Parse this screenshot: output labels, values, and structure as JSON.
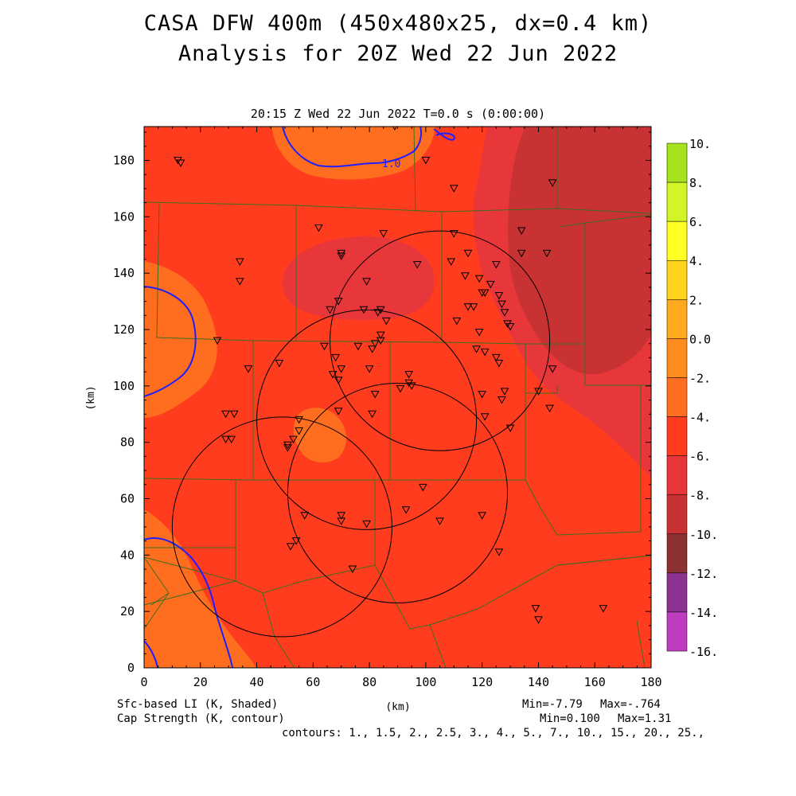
{
  "title_line1": "CASA DFW 400m (450x480x25, dx=0.4 km)",
  "title_line2": "Analysis for 20Z Wed 22 Jun 2022",
  "subtitle": "20:15 Z Wed 22 Jun 2022   T=0.0 s (0:00:00)",
  "axes": {
    "x_label": "(km)",
    "y_label": "(km)",
    "x_ticks": [
      "0",
      "20",
      "40",
      "60",
      "80",
      "100",
      "120",
      "140",
      "160",
      "180"
    ],
    "y_ticks": [
      "0",
      "20",
      "40",
      "60",
      "80",
      "100",
      "120",
      "140",
      "160",
      "180"
    ],
    "x_range": [
      0,
      180
    ],
    "y_range": [
      0,
      192
    ]
  },
  "colorbar": {
    "labels": [
      "10.",
      "8.",
      "6.",
      "4.",
      "2.",
      "0.0",
      "-2.",
      "-4.",
      "-6.",
      "-8.",
      "-10.",
      "-12.",
      "-14.",
      "-16."
    ],
    "colors": [
      "#a6e21e",
      "#d2f529",
      "#ffff24",
      "#ffd21e",
      "#ffaa1e",
      "#ff8c1e",
      "#ff6e1e",
      "#ff3c1e",
      "#e8373a",
      "#c83232",
      "#8c3232",
      "#8c3291",
      "#be3cbe",
      "#dc46e6"
    ]
  },
  "field": {
    "shaded_name": "Sfc-based LI (K, Shaded)",
    "contour_name": "Cap Strength (K, contour)",
    "shaded_min": "Min=-7.79",
    "shaded_max": "Max=-.764",
    "contour_min": "Min=0.100",
    "contour_max": "Max=1.31",
    "contours_text": "contours: 1., 1.5, 2., 2.5, 3., 4., 5., 7., 10., 15., 20., 25.,",
    "contour_label": "1.0"
  },
  "radars": [
    {
      "x_km": 105,
      "y_km": 116,
      "r_km": 39
    },
    {
      "x_km": 79,
      "y_km": 88,
      "r_km": 39
    },
    {
      "x_km": 49,
      "y_km": 50,
      "r_km": 39
    },
    {
      "x_km": 90,
      "y_km": 62,
      "r_km": 39
    }
  ],
  "stations": [
    [
      12,
      180
    ],
    [
      13,
      179
    ],
    [
      89,
      192
    ],
    [
      100,
      180
    ],
    [
      110,
      170
    ],
    [
      145,
      172
    ],
    [
      62,
      156
    ],
    [
      85,
      154
    ],
    [
      110,
      154
    ],
    [
      134,
      155
    ],
    [
      34,
      144
    ],
    [
      70,
      147
    ],
    [
      70,
      146
    ],
    [
      97,
      143
    ],
    [
      115,
      147
    ],
    [
      125,
      143
    ],
    [
      134,
      147
    ],
    [
      143,
      147
    ],
    [
      34,
      137
    ],
    [
      79,
      137
    ],
    [
      109,
      144
    ],
    [
      114,
      139
    ],
    [
      119,
      138
    ],
    [
      123,
      136
    ],
    [
      128,
      126
    ],
    [
      126,
      132
    ],
    [
      127,
      129
    ],
    [
      69,
      130
    ],
    [
      66,
      127
    ],
    [
      78,
      127
    ],
    [
      84,
      127
    ],
    [
      83,
      126
    ],
    [
      86,
      123
    ],
    [
      111,
      123
    ],
    [
      115,
      128
    ],
    [
      117,
      128
    ],
    [
      120,
      133
    ],
    [
      121,
      133
    ],
    [
      119,
      119
    ],
    [
      130,
      121
    ],
    [
      129,
      122
    ],
    [
      84,
      118
    ],
    [
      26,
      116
    ],
    [
      64,
      114
    ],
    [
      76,
      114
    ],
    [
      81,
      113
    ],
    [
      84,
      116
    ],
    [
      82,
      115
    ],
    [
      121,
      112
    ],
    [
      118,
      113
    ],
    [
      125,
      110
    ],
    [
      126,
      108
    ],
    [
      37,
      106
    ],
    [
      48,
      108
    ],
    [
      67,
      104
    ],
    [
      70,
      106
    ],
    [
      68,
      110
    ],
    [
      80,
      106
    ],
    [
      69,
      102
    ],
    [
      94,
      104
    ],
    [
      94,
      101
    ],
    [
      95,
      100
    ],
    [
      91,
      99
    ],
    [
      82,
      97
    ],
    [
      120,
      97
    ],
    [
      128,
      98
    ],
    [
      127,
      95
    ],
    [
      140,
      98
    ],
    [
      145,
      106
    ],
    [
      29,
      90
    ],
    [
      32,
      90
    ],
    [
      29,
      81
    ],
    [
      31,
      81
    ],
    [
      55,
      88
    ],
    [
      55,
      84
    ],
    [
      69,
      91
    ],
    [
      81,
      90
    ],
    [
      121,
      89
    ],
    [
      130,
      85
    ],
    [
      53,
      81
    ],
    [
      51,
      79
    ],
    [
      51,
      78
    ],
    [
      144,
      92
    ],
    [
      99,
      64
    ],
    [
      57,
      54
    ],
    [
      70,
      54
    ],
    [
      70,
      52
    ],
    [
      79,
      51
    ],
    [
      93,
      56
    ],
    [
      105,
      52
    ],
    [
      120,
      54
    ],
    [
      126,
      41
    ],
    [
      52,
      43
    ],
    [
      54,
      45
    ],
    [
      74,
      35
    ],
    [
      139,
      21
    ],
    [
      140,
      17
    ],
    [
      163,
      21
    ]
  ]
}
